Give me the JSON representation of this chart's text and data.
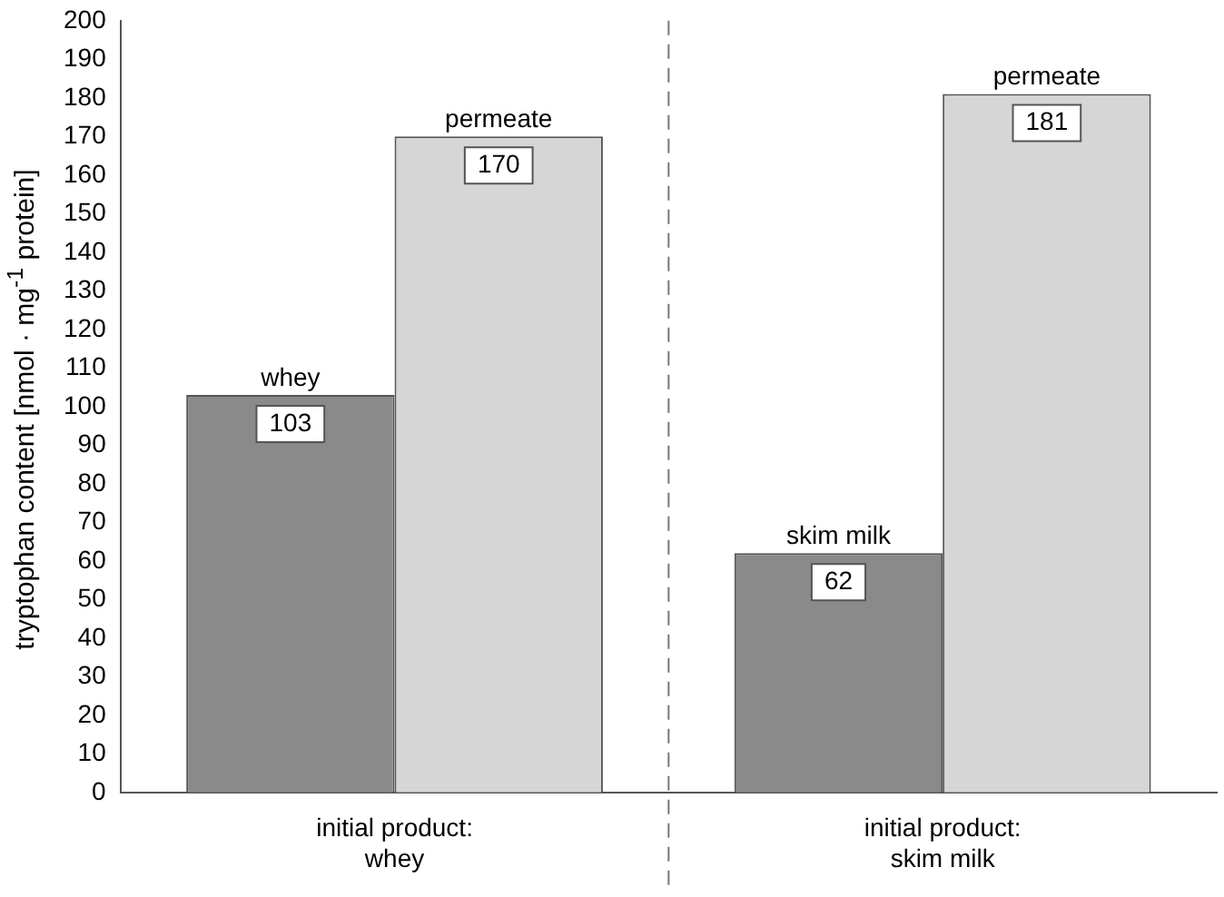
{
  "chart_data": {
    "type": "bar",
    "ylabel": "tryptophan content   [nmol · mg$^{-1}$ protein]",
    "categories": [
      "initial product:\nwhey",
      "initial product:\nskim milk"
    ],
    "series": [
      {
        "color": "#8a8a8a",
        "values": [
          103,
          62
        ]
      },
      {
        "color": "#d6d6d6",
        "values": [
          170,
          181
        ]
      }
    ],
    "ylim": [
      0,
      200
    ],
    "yticks": [
      0,
      10,
      20,
      30,
      40,
      50,
      60,
      70,
      80,
      90,
      100,
      110,
      120,
      130,
      140,
      150,
      160,
      170,
      180,
      190,
      200
    ],
    "grid": false,
    "legend": false,
    "data_labels": true,
    "annotations": [
      {
        "text": "whey",
        "x": "initial product:\nwhey",
        "y": 103
      },
      {
        "text": "permeate",
        "x": "initial product:\nwhey",
        "y": 170
      },
      {
        "text": "skim milk",
        "x": "initial product:\nskim milk",
        "y": 62
      },
      {
        "text": "permeate",
        "x": "initial product:\nskim milk",
        "y": 181
      }
    ]
  }
}
